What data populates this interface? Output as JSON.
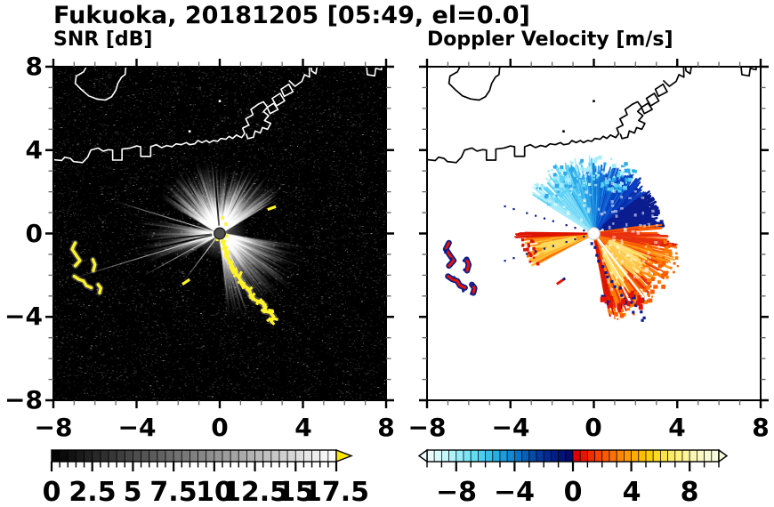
{
  "chart_data": {
    "type": "heatmap",
    "suptitle": "Fukuoka, 20181205 [05:49, el=0.0]",
    "station": "Fukuoka",
    "date": "20181205",
    "time": "05:49",
    "elevation": "0.0",
    "x_tick_labels": [
      "−8",
      "−4",
      "0",
      "4",
      "8"
    ],
    "y_tick_labels": [
      "8",
      "4",
      "0",
      "−4",
      "−8"
    ],
    "xticks": [
      -8,
      -4,
      0,
      4,
      8
    ],
    "yticks": [
      -8,
      -4,
      0,
      4,
      8
    ],
    "minor_tick_step": 1,
    "panels": [
      {
        "title": "SNR [dB]",
        "xlim": [
          -8,
          8
        ],
        "ylim": [
          -8,
          8
        ],
        "background": "#000000",
        "colorbar": {
          "min": 0,
          "max": 17.5,
          "block_step": 0.5,
          "ticks": [
            0,
            2.5,
            5,
            7.5,
            10,
            12.5,
            15,
            17.5
          ],
          "tick_labels": [
            "0",
            "2.5",
            "5",
            "7.5",
            "10",
            "12.5",
            "15",
            "17.5"
          ],
          "ramp": [
            "#000000",
            "#FFFFFF"
          ],
          "overflow_color": "#FFE800"
        },
        "radar_center": [
          0,
          0
        ],
        "features": {
          "description": "black noise background, bright radial beam fans from radar center, white coastline, yellow saturated echoes",
          "bright_sectors": [
            {
              "az": [
                30,
                150
              ],
              "r": 3.6,
              "peak": 0.72
            },
            {
              "az": [
                -85,
                -8
              ],
              "r": 4.3,
              "peak": 0.55
            },
            {
              "az": [
                168,
                202
              ],
              "r": 4.2,
              "peak": 0.38
            },
            {
              "az": [
                202,
                214
              ],
              "r": 3.0,
              "peak": 0.2
            }
          ],
          "thin_rays": [
            {
              "az": 163,
              "r": 5.4
            },
            {
              "az": 197,
              "r": 7.6
            },
            {
              "az": 209,
              "r": 4.2
            },
            {
              "az": 233,
              "r": 2.8
            }
          ],
          "shadow_rays": [
            95,
            186,
            193,
            255,
            262
          ],
          "strong_echo_color": "#FFF32B"
        }
      },
      {
        "title": "Doppler Velocity [m/s]",
        "xlim": [
          -8,
          8
        ],
        "ylim": [
          -8,
          8
        ],
        "background": "#FFFFFF",
        "colorbar": {
          "min": -10,
          "max": 10,
          "block_step": 0.5,
          "ticks": [
            -8,
            -4,
            0,
            4,
            8
          ],
          "tick_labels": [
            "−8",
            "−4",
            "0",
            "4",
            "8"
          ],
          "negative_colors": [
            "#EAFEFF",
            "#DAFBFE",
            "#C5F8FD",
            "#AEF3FB",
            "#96EDF9",
            "#7DE4F6",
            "#64DAF3",
            "#4CCEEF",
            "#37C0EA",
            "#26AFE4",
            "#199DDC",
            "#0F89D2",
            "#0974C6",
            "#0560BA",
            "#034BAC",
            "#02399E",
            "#012A90",
            "#011E83",
            "#001476",
            "#000B6A"
          ],
          "positive_colors": [
            "#DC0000",
            "#E91300",
            "#F32A00",
            "#FA4200",
            "#FE5A00",
            "#FF7100",
            "#FF8700",
            "#FF9B00",
            "#FFAD00",
            "#FFBE00",
            "#FFCD0A",
            "#FFD928",
            "#FFE246",
            "#FFEA64",
            "#FFF080",
            "#FEF49A",
            "#FCF7B0",
            "#FAF9C2",
            "#F8FAD2",
            "#F6FBDE"
          ],
          "under_arrow": "#F0FFFF",
          "over_arrow": "#F6FBDE"
        },
        "features": {
          "description": "white background, blue toward-radar fan above center, orange/red away fan below-right, black coastline",
          "toward_fan": {
            "az": [
              35,
              148
            ],
            "r": 3.45,
            "palette": [
              "#A6ECFB",
              "#5FD2F5",
              "#2BA9E9",
              "#1372D7",
              "#0A40C1",
              "#0727A2"
            ]
          },
          "navy_clump": {
            "az": [
              6,
              38
            ],
            "r": [
              0.9,
              3.35
            ],
            "color": "#0A1C8E"
          },
          "away_fan": {
            "az": [
              -80,
              -6
            ],
            "r": 4.05,
            "palette": [
              "#E83010",
              "#FA5C00",
              "#FF7C00",
              "#FFA020",
              "#FFC74A",
              "#FFE37A"
            ]
          },
          "away_wedge": {
            "az": [
              184,
              209
            ],
            "r": 3.45,
            "palette": [
              "#F86A00",
              "#FF9410",
              "#FFB930",
              "#FFD95A"
            ]
          },
          "red_streak_az": 181,
          "dotted_ray_az": [
            163,
            197
          ],
          "fringe_color": "#0A1C8E",
          "red_color": "#E41400"
        }
      }
    ],
    "overlays": {
      "coast": {
        "mainland": [
          [
            -8.1,
            3.55
          ],
          [
            -7.6,
            3.5
          ],
          [
            -7.45,
            3.66
          ],
          [
            -7.18,
            3.6
          ],
          [
            -7.03,
            3.45
          ],
          [
            -6.6,
            3.4
          ],
          [
            -6.35,
            3.66
          ],
          [
            -6.2,
            4.0
          ],
          [
            -5.85,
            4.1
          ],
          [
            -5.6,
            3.95
          ],
          [
            -5.35,
            4.02
          ],
          [
            -5.15,
            4.0
          ],
          [
            -5.15,
            3.52
          ],
          [
            -4.7,
            3.52
          ],
          [
            -4.7,
            4.05
          ],
          [
            -4.3,
            4.1
          ],
          [
            -4.0,
            4.2
          ],
          [
            -3.8,
            4.16
          ],
          [
            -3.8,
            3.7
          ],
          [
            -3.32,
            3.7
          ],
          [
            -3.32,
            4.16
          ],
          [
            -3.05,
            4.26
          ],
          [
            -2.8,
            4.12
          ],
          [
            -2.55,
            4.22
          ],
          [
            -2.3,
            4.16
          ],
          [
            -2.1,
            4.3
          ],
          [
            -1.85,
            4.26
          ],
          [
            -1.6,
            4.36
          ],
          [
            -1.45,
            4.26
          ],
          [
            -1.2,
            4.3
          ],
          [
            -1.05,
            4.46
          ],
          [
            -0.85,
            4.36
          ],
          [
            -0.65,
            4.46
          ],
          [
            -0.5,
            4.36
          ],
          [
            -0.3,
            4.46
          ],
          [
            -0.1,
            4.42
          ],
          [
            0.05,
            4.56
          ],
          [
            0.3,
            4.52
          ],
          [
            0.45,
            4.66
          ],
          [
            0.62,
            4.56
          ],
          [
            0.8,
            4.72
          ]
        ],
        "island": [
          [
            -6.35,
            8.12
          ],
          [
            -6.55,
            7.75
          ],
          [
            -6.9,
            7.55
          ],
          [
            -6.95,
            7.2
          ],
          [
            -6.65,
            6.9
          ],
          [
            -6.3,
            6.6
          ],
          [
            -5.9,
            6.45
          ],
          [
            -5.5,
            6.4
          ],
          [
            -5.2,
            6.56
          ],
          [
            -5.0,
            6.86
          ],
          [
            -4.9,
            7.2
          ],
          [
            -4.72,
            7.5
          ],
          [
            -4.55,
            7.62
          ],
          [
            -4.5,
            8.12
          ]
        ],
        "piers": [
          [
            [
              0.8,
              4.72
            ],
            [
              1.05,
              4.6
            ],
            [
              1.2,
              4.8
            ],
            [
              1.1,
              5.05
            ],
            [
              1.4,
              5.2
            ],
            [
              1.25,
              5.5
            ],
            [
              1.6,
              5.7
            ],
            [
              1.5,
              5.95
            ],
            [
              1.85,
              6.2
            ],
            [
              2.1,
              6.32
            ],
            [
              2.3,
              6.05
            ],
            [
              2.1,
              5.85
            ],
            [
              2.35,
              5.65
            ],
            [
              2.15,
              5.42
            ],
            [
              2.45,
              5.28
            ],
            [
              2.3,
              5.0
            ],
            [
              2.05,
              5.08
            ],
            [
              1.95,
              4.82
            ],
            [
              1.7,
              4.92
            ],
            [
              1.62,
              4.62
            ],
            [
              1.35,
              4.55
            ],
            [
              1.28,
              4.75
            ]
          ],
          [
            [
              2.42,
              5.75
            ],
            [
              2.28,
              6.05
            ],
            [
              2.6,
              6.25
            ],
            [
              2.8,
              5.95
            ],
            [
              2.42,
              5.75
            ]
          ],
          [
            [
              2.72,
              6.12
            ],
            [
              2.52,
              6.48
            ],
            [
              2.9,
              6.72
            ],
            [
              3.12,
              6.36
            ],
            [
              2.72,
              6.12
            ]
          ],
          [
            [
              3.1,
              6.58
            ],
            [
              2.95,
              6.92
            ],
            [
              3.32,
              7.16
            ],
            [
              3.52,
              6.8
            ],
            [
              3.1,
              6.58
            ]
          ],
          [
            [
              3.35,
              7.32
            ],
            [
              3.62,
              7.06
            ],
            [
              3.95,
              7.3
            ],
            [
              4.08,
              7.62
            ],
            [
              4.32,
              7.5
            ],
            [
              4.3,
              8.12
            ]
          ],
          [
            [
              4.38,
              8.12
            ],
            [
              4.42,
              7.8
            ],
            [
              4.62,
              7.66
            ],
            [
              4.7,
              8.12
            ]
          ],
          [
            [
              7.05,
              8.12
            ],
            [
              7.1,
              7.62
            ],
            [
              7.45,
              7.56
            ],
            [
              7.5,
              7.92
            ],
            [
              7.78,
              7.86
            ],
            [
              7.8,
              8.12
            ]
          ]
        ],
        "marks": [
          [
            0.0,
            6.35
          ],
          [
            -1.45,
            4.9
          ]
        ]
      },
      "echoes": {
        "chain": [
          [
            0.12,
            -0.4
          ],
          [
            0.28,
            -0.7
          ],
          [
            0.3,
            -1.05
          ],
          [
            0.45,
            -1.3
          ],
          [
            0.6,
            -1.55
          ],
          [
            0.72,
            -1.82
          ],
          [
            0.88,
            -2.05
          ],
          [
            1.02,
            -2.28
          ],
          [
            1.18,
            -2.5
          ],
          [
            1.42,
            -2.68
          ],
          [
            1.5,
            -2.98
          ],
          [
            1.68,
            -3.18
          ],
          [
            1.95,
            -3.3
          ],
          [
            2.18,
            -3.42
          ],
          [
            2.12,
            -3.72
          ],
          [
            2.42,
            -3.78
          ],
          [
            2.6,
            -4.0
          ],
          [
            2.48,
            -4.2
          ]
        ],
        "center_specks": [
          [
            0.14,
            0.75
          ],
          [
            0.3,
            0.45
          ],
          [
            0.08,
            0.18
          ],
          [
            0.35,
            -0.12
          ],
          [
            -0.12,
            -0.28
          ]
        ],
        "dashes": [
          [
            2.5,
            1.22,
            20
          ],
          [
            -1.62,
            -2.32,
            35
          ]
        ],
        "arcs": [
          [
            [
              -6.95,
              -0.45
            ],
            [
              -7.1,
              -0.75
            ],
            [
              -6.9,
              -1.05
            ],
            [
              -6.72,
              -1.3
            ],
            [
              -6.95,
              -1.55
            ]
          ],
          [
            [
              -6.1,
              -1.25
            ],
            [
              -6.0,
              -1.5
            ],
            [
              -6.08,
              -1.78
            ]
          ],
          [
            [
              -7.0,
              -2.05
            ],
            [
              -6.78,
              -2.2
            ],
            [
              -6.55,
              -2.28
            ],
            [
              -6.42,
              -2.5
            ],
            [
              -6.18,
              -2.6
            ]
          ],
          [
            [
              -5.85,
              -2.45
            ],
            [
              -5.72,
              -2.62
            ],
            [
              -5.78,
              -2.85
            ]
          ]
        ],
        "blobs": [
          [
            0.45,
            -3.05
          ],
          [
            0.72,
            -3.32
          ],
          [
            1.25,
            -3.5
          ],
          [
            1.55,
            -3.32
          ],
          [
            1.9,
            -3.05
          ],
          [
            2.12,
            -3.35
          ],
          [
            2.32,
            -3.18
          ]
        ]
      }
    }
  }
}
